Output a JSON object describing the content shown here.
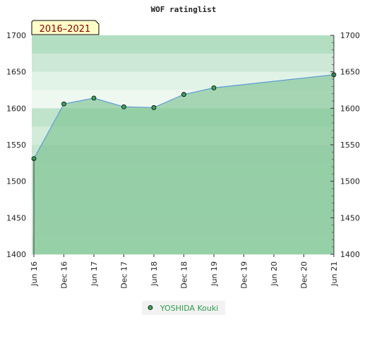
{
  "chart_data": {
    "type": "area",
    "title": "WOF ratinglist",
    "period_badge": "2016–2021",
    "x_tick_labels": [
      "Jun 16",
      "Dec 16",
      "Jun 17",
      "Dec 17",
      "Jun 18",
      "Dec 18",
      "Jun 19",
      "Dec 19",
      "Jun 20",
      "Dec 20",
      "Jun 21"
    ],
    "y_ticks": [
      1400,
      1450,
      1500,
      1550,
      1600,
      1650,
      1700
    ],
    "ylim": [
      1400,
      1700
    ],
    "grid": false,
    "legend_position": "bottom-center",
    "series": [
      {
        "name": "YOSHIDA Kouki",
        "x": [
          "Jun 16",
          "Dec 16",
          "Jun 17",
          "Dec 17",
          "Jun 18",
          "Dec 18",
          "Jun 19",
          "Jun 21"
        ],
        "y": [
          1531,
          1606,
          1614,
          1602,
          1601,
          1619,
          1628,
          1646
        ]
      }
    ],
    "colors": {
      "area_fill": "#8ec99f",
      "line": "#5b9bd5",
      "marker": "#3aa35a",
      "legend_text": "#2e9d4f",
      "badge_bg": "#ffffc8",
      "badge_text": "#8b0000"
    }
  }
}
